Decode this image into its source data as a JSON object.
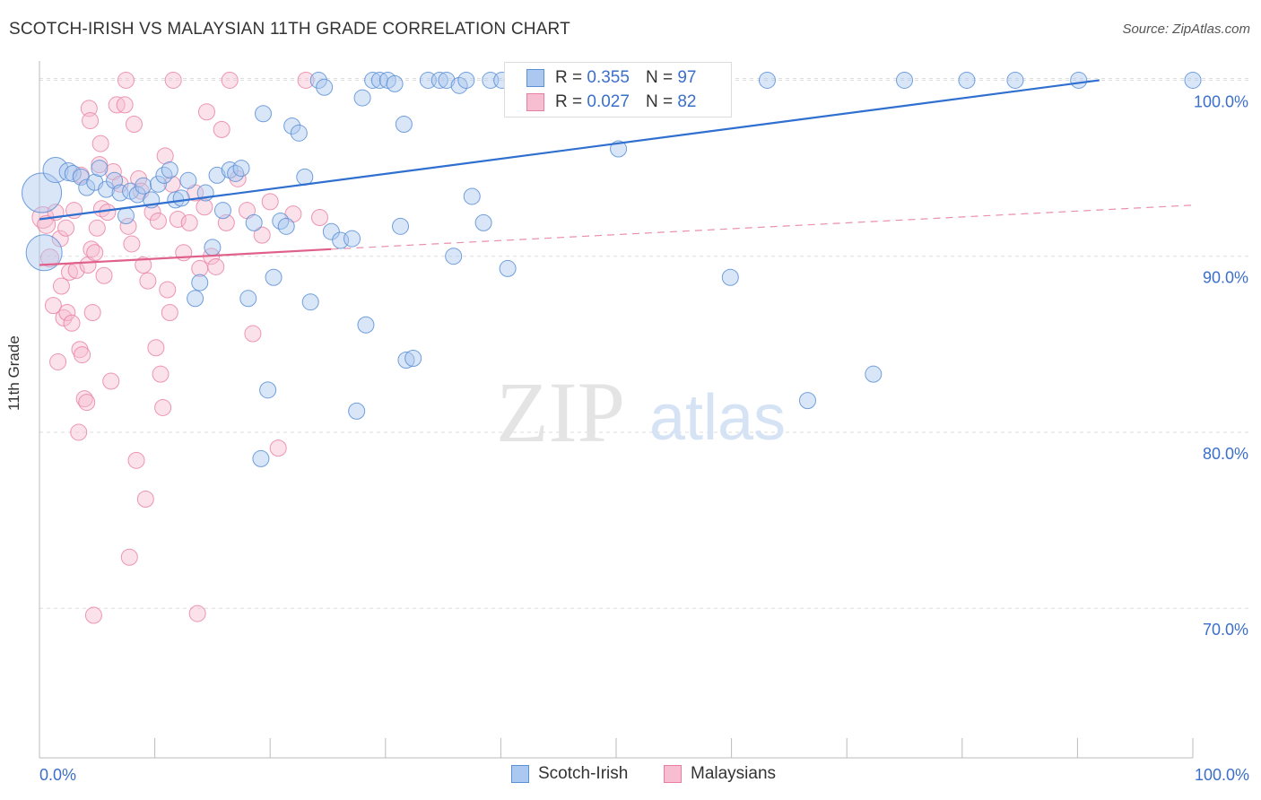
{
  "title": "SCOTCH-IRISH VS MALAYSIAN 11TH GRADE CORRELATION CHART",
  "source": "Source: ZipAtlas.com",
  "watermark": {
    "zip": "ZIP",
    "atlas": "atlas"
  },
  "colors": {
    "blue_fill": "#aac8f0",
    "blue_stroke": "#5b8fd6",
    "blue_line": "#2f6fcf",
    "pink_fill": "#f7bdd0",
    "pink_stroke": "#e87ea0",
    "pink_line": "#e0608a",
    "tick_label": "#3b6fc9",
    "grid": "#dddddd"
  },
  "legend": {
    "rows": [
      {
        "r_label": "R =",
        "r_value": "0.355",
        "n_label": "N =",
        "n_value": "97"
      },
      {
        "r_label": "R =",
        "r_value": "0.027",
        "n_label": "N =",
        "n_value": "82"
      }
    ]
  },
  "bottom_legend": [
    "Scotch-Irish",
    "Malaysians"
  ],
  "chart_data": {
    "type": "scatter",
    "title": "SCOTCH-IRISH VS MALAYSIAN 11TH GRADE CORRELATION CHART",
    "xlabel": "",
    "ylabel": "11th Grade",
    "xlim": [
      0,
      100
    ],
    "ylim": [
      61.5,
      101.5
    ],
    "x_tick_labels": [
      "0.0%",
      "100.0%"
    ],
    "y_ticks": [
      70,
      80,
      90,
      100
    ],
    "y_tick_labels": [
      "70.0%",
      "80.0%",
      "90.0%",
      "100.0%"
    ],
    "grid": true,
    "legend_position": "top-center",
    "series": [
      {
        "name": "Scotch-Irish",
        "color": "#5b8fd6",
        "trend": {
          "x": [
            0,
            91.9
          ],
          "y": [
            92.1,
            100.0
          ],
          "style": "solid"
        },
        "points": [
          [
            0.2,
            93.6,
            22
          ],
          [
            0.4,
            90.2,
            20
          ],
          [
            1.4,
            94.9,
            14
          ],
          [
            2.5,
            94.8,
            10
          ],
          [
            2.9,
            94.7,
            9
          ],
          [
            3.6,
            94.5,
            9
          ],
          [
            4.1,
            93.9,
            9
          ],
          [
            4.8,
            94.2,
            9
          ],
          [
            5.2,
            95.0,
            9
          ],
          [
            5.8,
            93.8,
            9
          ],
          [
            6.5,
            94.3,
            9
          ],
          [
            7.0,
            93.6,
            9
          ],
          [
            7.5,
            92.3,
            9
          ],
          [
            7.9,
            93.7,
            9
          ],
          [
            8.5,
            93.5,
            9
          ],
          [
            9.0,
            94.0,
            9
          ],
          [
            9.7,
            93.2,
            9
          ],
          [
            10.3,
            94.1,
            9
          ],
          [
            10.8,
            94.6,
            9
          ],
          [
            11.3,
            94.9,
            9
          ],
          [
            11.8,
            93.2,
            9
          ],
          [
            12.3,
            93.3,
            9
          ],
          [
            12.9,
            94.3,
            9
          ],
          [
            13.5,
            87.6,
            9
          ],
          [
            13.9,
            88.5,
            9
          ],
          [
            14.4,
            93.6,
            9
          ],
          [
            15.0,
            90.5,
            9
          ],
          [
            15.4,
            94.6,
            9
          ],
          [
            15.9,
            92.6,
            9
          ],
          [
            16.5,
            94.9,
            9
          ],
          [
            17.0,
            94.7,
            9
          ],
          [
            17.5,
            95.0,
            9
          ],
          [
            18.1,
            87.6,
            9
          ],
          [
            18.6,
            91.9,
            9
          ],
          [
            19.2,
            78.5,
            9
          ],
          [
            19.4,
            98.1,
            9
          ],
          [
            19.8,
            82.4,
            9
          ],
          [
            20.3,
            88.8,
            9
          ],
          [
            20.9,
            92.0,
            9
          ],
          [
            21.4,
            91.7,
            9
          ],
          [
            21.9,
            97.4,
            9
          ],
          [
            22.5,
            97.0,
            9
          ],
          [
            23.0,
            94.5,
            9
          ],
          [
            23.5,
            87.4,
            9
          ],
          [
            24.2,
            100.0,
            9
          ],
          [
            24.7,
            99.6,
            9
          ],
          [
            25.3,
            91.4,
            9
          ],
          [
            26.1,
            90.9,
            9
          ],
          [
            27.1,
            91.0,
            9
          ],
          [
            27.5,
            81.2,
            9
          ],
          [
            28.0,
            99.0,
            9
          ],
          [
            28.3,
            86.1,
            9
          ],
          [
            28.9,
            100.0,
            9
          ],
          [
            29.5,
            100.0,
            9
          ],
          [
            30.2,
            100.0,
            9
          ],
          [
            30.8,
            99.8,
            9
          ],
          [
            31.3,
            91.7,
            9
          ],
          [
            31.6,
            97.5,
            9
          ],
          [
            31.8,
            84.1,
            9
          ],
          [
            32.4,
            84.2,
            9
          ],
          [
            33.7,
            100.0,
            9
          ],
          [
            34.7,
            100.0,
            9
          ],
          [
            35.3,
            100.0,
            9
          ],
          [
            35.9,
            90.0,
            9
          ],
          [
            36.4,
            99.7,
            9
          ],
          [
            37.0,
            100.0,
            9
          ],
          [
            37.5,
            93.4,
            9
          ],
          [
            38.5,
            91.9,
            9
          ],
          [
            39.1,
            100.0,
            9
          ],
          [
            40.1,
            100.0,
            9
          ],
          [
            40.6,
            89.3,
            9
          ],
          [
            41.0,
            100.0,
            9
          ],
          [
            41.7,
            100.0,
            9
          ],
          [
            42.5,
            100.0,
            9
          ],
          [
            43.2,
            100.0,
            9
          ],
          [
            44.2,
            100.0,
            9
          ],
          [
            45.8,
            100.0,
            9
          ],
          [
            46.3,
            100.0,
            9
          ],
          [
            47.4,
            100.0,
            9
          ],
          [
            48.4,
            100.0,
            9
          ],
          [
            48.9,
            100.0,
            9
          ],
          [
            49.2,
            100.0,
            9
          ],
          [
            50.2,
            96.1,
            9
          ],
          [
            50.8,
            100.0,
            9
          ],
          [
            51.8,
            100.0,
            9
          ],
          [
            53.7,
            100.0,
            9
          ],
          [
            56.6,
            100.0,
            9
          ],
          [
            58.0,
            100.0,
            9
          ],
          [
            59.9,
            88.8,
            9
          ],
          [
            63.1,
            100.0,
            9
          ],
          [
            66.6,
            81.8,
            9
          ],
          [
            72.3,
            83.3,
            9
          ],
          [
            75.0,
            100.0,
            9
          ],
          [
            80.4,
            100.0,
            9
          ],
          [
            84.6,
            100.0,
            9
          ],
          [
            90.1,
            100.0,
            9
          ],
          [
            100.0,
            100.0,
            9
          ]
        ]
      },
      {
        "name": "Malaysians",
        "color": "#e87ea0",
        "trend": {
          "x": [
            0,
            25.3
          ],
          "y": [
            89.5,
            90.4
          ],
          "style": "solid",
          "extended": {
            "x": [
              25.3,
              100
            ],
            "y": [
              90.4,
              92.9
            ],
            "style": "dashed"
          }
        },
        "points": [
          [
            0.3,
            92.2,
            12
          ],
          [
            0.6,
            91.8,
            10
          ],
          [
            0.9,
            89.9,
            10
          ],
          [
            1.2,
            87.2,
            9
          ],
          [
            1.4,
            92.5,
            9
          ],
          [
            1.6,
            84.0,
            9
          ],
          [
            1.8,
            91.0,
            9
          ],
          [
            1.9,
            88.3,
            9
          ],
          [
            2.1,
            86.5,
            9
          ],
          [
            2.3,
            91.6,
            9
          ],
          [
            2.4,
            86.8,
            9
          ],
          [
            2.6,
            89.1,
            9
          ],
          [
            2.8,
            86.2,
            9
          ],
          [
            3.0,
            92.6,
            9
          ],
          [
            3.2,
            89.2,
            9
          ],
          [
            3.4,
            80.0,
            9
          ],
          [
            3.5,
            84.7,
            9
          ],
          [
            3.6,
            94.6,
            9
          ],
          [
            3.7,
            84.4,
            9
          ],
          [
            3.9,
            81.9,
            9
          ],
          [
            4.1,
            81.7,
            9
          ],
          [
            4.2,
            89.5,
            9
          ],
          [
            4.3,
            98.4,
            9
          ],
          [
            4.4,
            97.7,
            9
          ],
          [
            4.5,
            90.4,
            9
          ],
          [
            4.6,
            86.8,
            9
          ],
          [
            4.7,
            69.6,
            9
          ],
          [
            4.8,
            90.2,
            9
          ],
          [
            5.0,
            91.6,
            9
          ],
          [
            5.2,
            95.2,
            9
          ],
          [
            5.3,
            96.4,
            9
          ],
          [
            5.4,
            92.7,
            9
          ],
          [
            5.6,
            88.9,
            9
          ],
          [
            5.9,
            92.5,
            9
          ],
          [
            6.2,
            82.9,
            9
          ],
          [
            6.4,
            94.8,
            9
          ],
          [
            6.7,
            98.6,
            9
          ],
          [
            7.0,
            94.1,
            9
          ],
          [
            7.4,
            98.6,
            9
          ],
          [
            7.5,
            100.0,
            9
          ],
          [
            7.7,
            91.7,
            9
          ],
          [
            7.8,
            72.9,
            9
          ],
          [
            8.0,
            90.7,
            9
          ],
          [
            8.2,
            97.5,
            9
          ],
          [
            8.4,
            78.4,
            9
          ],
          [
            8.6,
            94.4,
            9
          ],
          [
            8.8,
            93.7,
            9
          ],
          [
            9.0,
            89.5,
            9
          ],
          [
            9.2,
            76.2,
            9
          ],
          [
            9.4,
            88.6,
            9
          ],
          [
            9.8,
            92.5,
            9
          ],
          [
            10.1,
            84.8,
            9
          ],
          [
            10.3,
            92.0,
            9
          ],
          [
            10.5,
            83.3,
            9
          ],
          [
            10.7,
            81.4,
            9
          ],
          [
            10.9,
            95.7,
            9
          ],
          [
            11.1,
            88.1,
            9
          ],
          [
            11.3,
            86.8,
            9
          ],
          [
            11.5,
            94.1,
            9
          ],
          [
            11.6,
            100.0,
            9
          ],
          [
            12.0,
            92.1,
            9
          ],
          [
            12.5,
            90.2,
            9
          ],
          [
            13.0,
            91.9,
            9
          ],
          [
            13.5,
            93.6,
            9
          ],
          [
            13.7,
            69.7,
            9
          ],
          [
            13.9,
            89.3,
            9
          ],
          [
            14.3,
            92.8,
            9
          ],
          [
            14.5,
            98.2,
            9
          ],
          [
            14.9,
            90.0,
            9
          ],
          [
            15.3,
            89.4,
            9
          ],
          [
            15.8,
            97.2,
            9
          ],
          [
            16.2,
            91.9,
            9
          ],
          [
            16.5,
            100.0,
            9
          ],
          [
            17.2,
            94.4,
            9
          ],
          [
            18.0,
            92.6,
            9
          ],
          [
            18.5,
            85.6,
            9
          ],
          [
            19.3,
            91.2,
            9
          ],
          [
            20.0,
            93.1,
            9
          ],
          [
            20.7,
            79.1,
            9
          ],
          [
            22.0,
            92.4,
            9
          ],
          [
            23.1,
            100.0,
            9
          ],
          [
            24.3,
            92.2,
            9
          ]
        ]
      }
    ]
  }
}
